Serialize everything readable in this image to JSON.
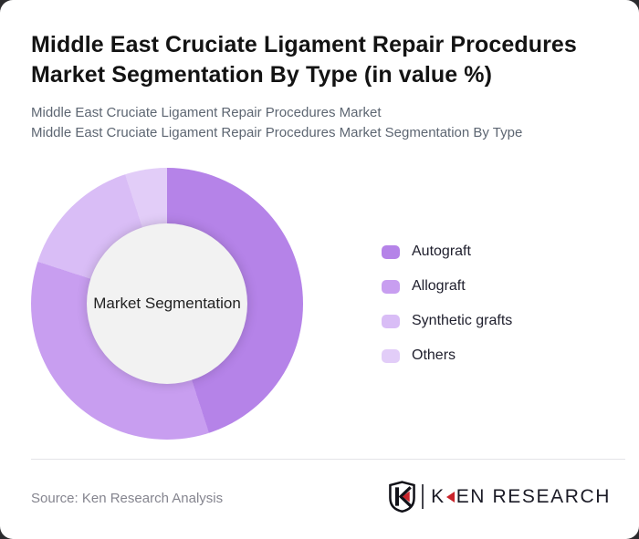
{
  "window": {
    "background": "#2b2b2e",
    "card_background": "#ffffff"
  },
  "header": {
    "title_line1": "Middle East Cruciate Ligament Repair Procedures",
    "title_line2": "Market Segmentation By Type (in value %)",
    "subtitle_line1": "Middle East Cruciate Ligament Repair Procedures Market",
    "subtitle_line2": "Middle East Cruciate Ligament Repair Procedures Market Segmentation By Type"
  },
  "chart_data": {
    "type": "pie",
    "style": "donut",
    "title": "Middle East Cruciate Ligament Repair Procedures Market Segmentation By Type (in value %)",
    "unit": "value %",
    "center_label": "Market Segmentation",
    "direction": "clockwise",
    "start_angle_deg": 0,
    "legend_position": "right",
    "inner_circle_color": "#f2f2f2",
    "segments": [
      {
        "label": "Autograft",
        "value": 45,
        "color": "#b583e8"
      },
      {
        "label": "Allograft",
        "value": 35,
        "color": "#c89ef0"
      },
      {
        "label": "Synthetic grafts",
        "value": 15,
        "color": "#d9bdf6"
      },
      {
        "label": "Others",
        "value": 5,
        "color": "#e2cdf8"
      }
    ]
  },
  "footer": {
    "source": "Source: Ken Research Analysis",
    "logo": {
      "text_k": "K",
      "text_rest": "EN RESEARCH",
      "accent_red": "#c9232a",
      "shield_icon": "ken-research-shield-k-icon"
    }
  },
  "colors": {
    "title_text": "#131313",
    "subtitle_text": "#5d6672",
    "legend_text": "#20202e",
    "source_text": "#85858f",
    "divider": "#e4e4e8"
  }
}
